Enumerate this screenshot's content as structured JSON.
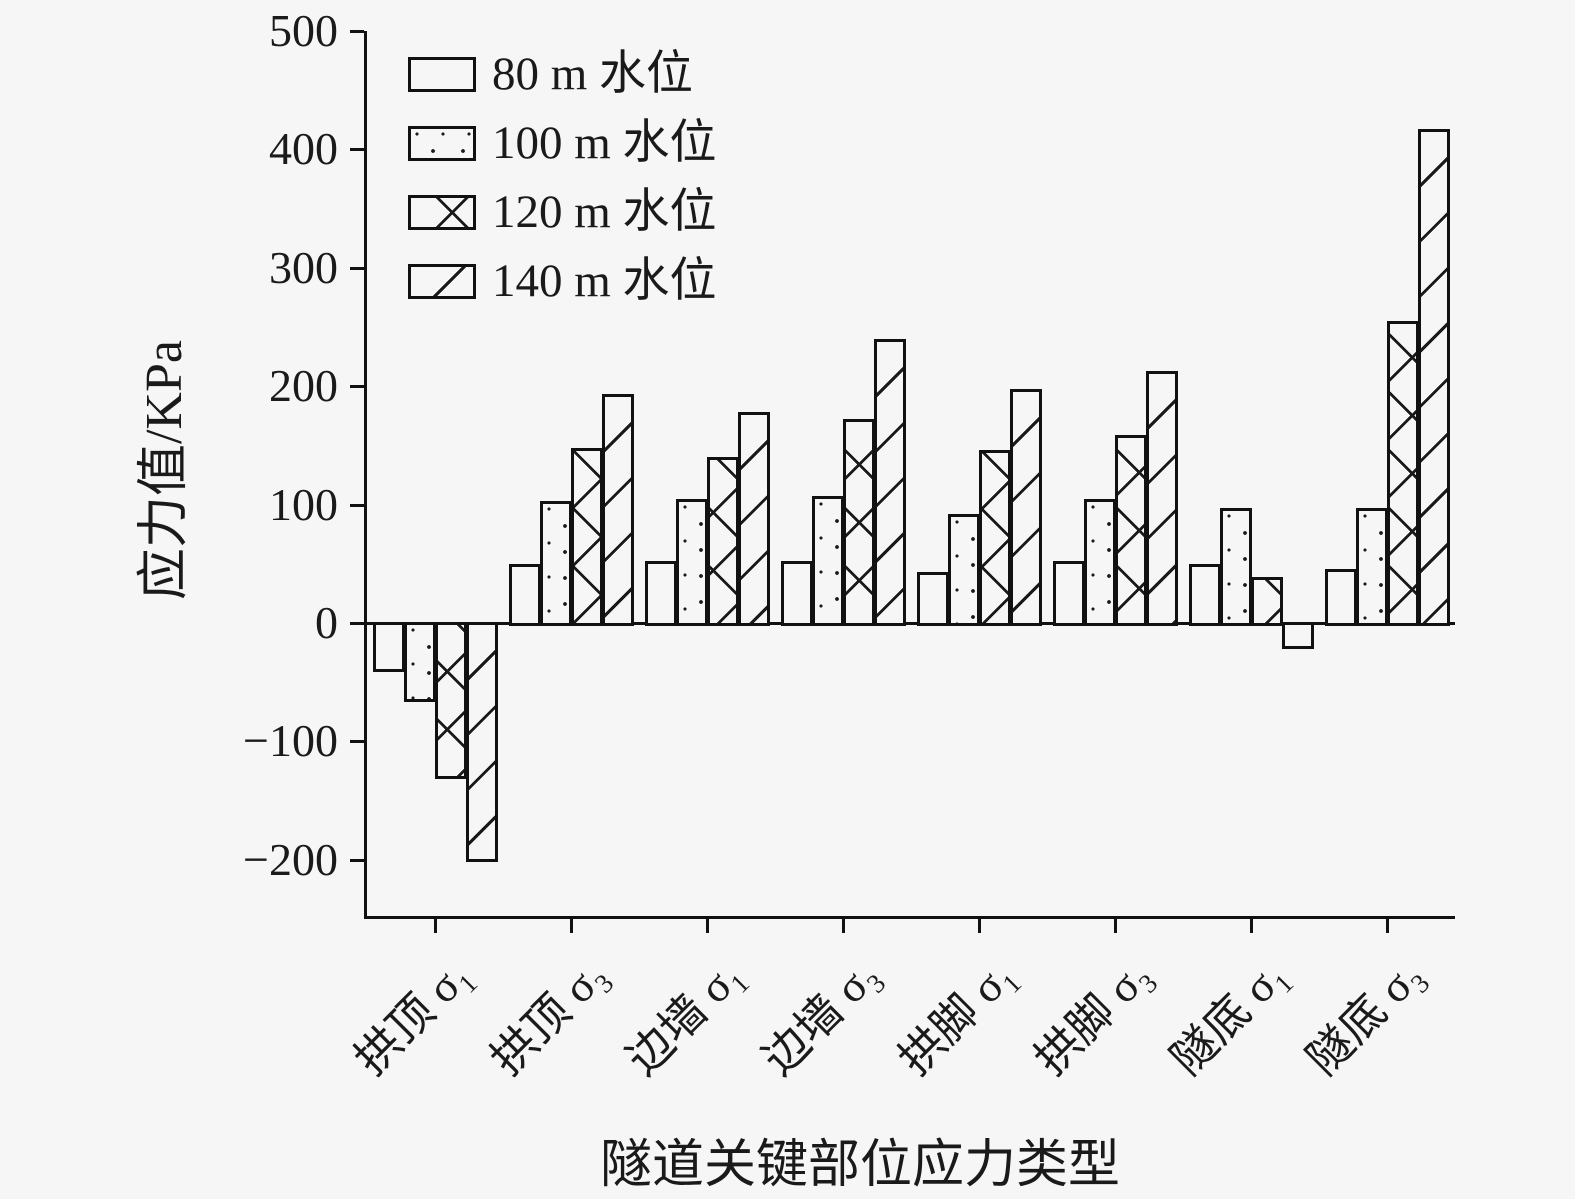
{
  "chart_data": {
    "type": "bar",
    "title": "",
    "xlabel": "隧道关键部位应力类型",
    "ylabel": "应力值/KPa",
    "categories": [
      "拱顶 σ₁",
      "拱顶 σ₃",
      "边墙 σ₁",
      "边墙 σ₃",
      "拱脚 σ₁",
      "拱脚 σ₃",
      "隧底 σ₁",
      "隧底 σ₃"
    ],
    "series": [
      {
        "name": "80 m 水位",
        "pattern": "plain",
        "values": [
          -40,
          50,
          52,
          52,
          43,
          52,
          50,
          46
        ]
      },
      {
        "name": "100 m 水位",
        "pattern": "dots",
        "values": [
          -65,
          103,
          105,
          107,
          92,
          105,
          97,
          97
        ]
      },
      {
        "name": "120 m 水位",
        "pattern": "cross",
        "values": [
          -130,
          148,
          140,
          172,
          146,
          159,
          39,
          255
        ]
      },
      {
        "name": "140 m 水位",
        "pattern": "diag",
        "values": [
          -200,
          193,
          178,
          240,
          198,
          213,
          -20,
          417
        ]
      }
    ],
    "ylim": [
      -250,
      500
    ],
    "yticks": [
      500,
      400,
      300,
      200,
      100,
      0,
      -100,
      -200
    ],
    "unit": "KPa",
    "legend_position": "top-left",
    "grid": false,
    "ink_color": "#111111",
    "background_color": "#f6f6f6"
  }
}
